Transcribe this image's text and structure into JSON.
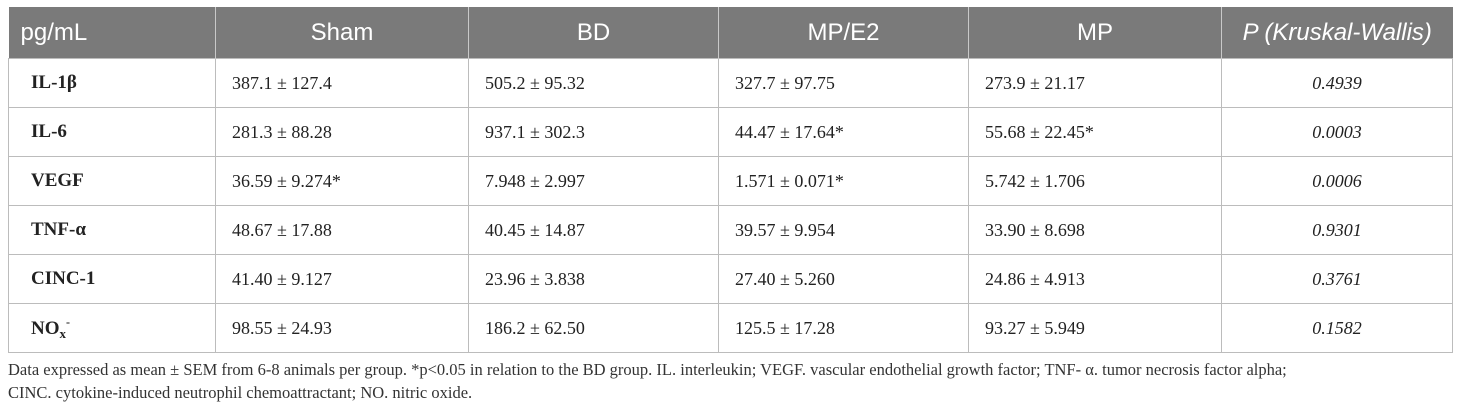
{
  "table": {
    "headers": [
      "pg/mL",
      "Sham",
      "BD",
      "MP/E2",
      "MP",
      "P (Kruskal-Wallis)"
    ],
    "rows": [
      {
        "name": "IL-1β",
        "sham": "387.1 ± 127.4",
        "bd": "505.2 ± 95.32",
        "mpe2": "327.7 ± 97.75",
        "mp": "273.9 ± 21.17",
        "p": "0.4939"
      },
      {
        "name": "IL-6",
        "sham": "281.3 ± 88.28",
        "bd": "937.1 ± 302.3",
        "mpe2": "44.47 ± 17.64*",
        "mp": "55.68 ± 22.45*",
        "p": "0.0003"
      },
      {
        "name": "VEGF",
        "sham": "36.59 ± 9.274*",
        "bd": "7.948 ± 2.997",
        "mpe2": "1.571 ± 0.071*",
        "mp": "5.742 ± 1.706",
        "p": "0.0006"
      },
      {
        "name": "TNF-α",
        "sham": "48.67 ± 17.88",
        "bd": "40.45 ± 14.87",
        "mpe2": "39.57 ± 9.954",
        "mp": "33.90 ± 8.698",
        "p": "0.9301"
      },
      {
        "name": "CINC-1",
        "sham": "41.40 ± 9.127",
        "bd": "23.96 ± 3.838",
        "mpe2": "27.40 ± 5.260",
        "mp": "24.86 ± 4.913",
        "p": "0.3761"
      },
      {
        "name_main": "NO",
        "name_sub": "x",
        "name_sup": "-",
        "sham": "98.55 ± 24.93",
        "bd": "186.2 ± 62.50",
        "mpe2": "125.5 ± 17.28",
        "mp": "93.27 ± 5.949",
        "p": "0.1582"
      }
    ]
  },
  "footnote": {
    "line1": "Data expressed as mean ± SEM from 6-8 animals per group. *p<0.05 in relation to the BD group. IL. interleukin; VEGF. vascular endothelial growth factor; TNF- α. tumor necrosis factor alpha;",
    "line2": "CINC. cytokine-induced neutrophil chemoattractant; NO. nitric oxide."
  }
}
